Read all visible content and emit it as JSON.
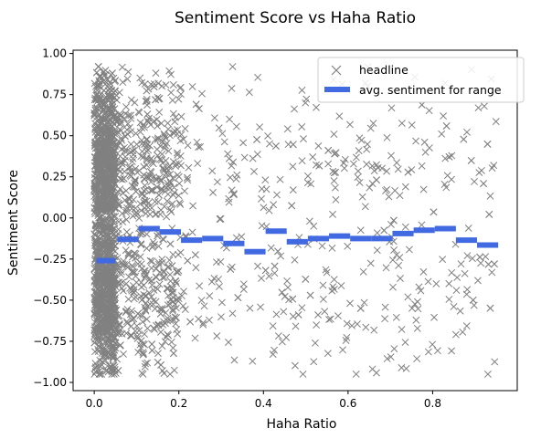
{
  "chart_data": {
    "type": "scatter",
    "title": "Sentiment Score vs Haha Ratio",
    "xlabel": "Haha Ratio",
    "ylabel": "Sentiment Score",
    "xlim": [
      -0.05,
      1.0
    ],
    "ylim": [
      -1.05,
      1.02
    ],
    "xticks": [
      0.0,
      0.2,
      0.4,
      0.6,
      0.8
    ],
    "xtick_labels": [
      "0.0",
      "0.2",
      "0.4",
      "0.6",
      "0.8"
    ],
    "yticks": [
      -1.0,
      -0.75,
      -0.5,
      -0.25,
      0.0,
      0.25,
      0.5,
      0.75,
      1.0
    ],
    "ytick_labels": [
      "−1.00",
      "−0.75",
      "−0.50",
      "−0.25",
      "0.00",
      "0.25",
      "0.50",
      "0.75",
      "1.00"
    ],
    "grid": false,
    "legend_position": "top-right",
    "series": [
      {
        "name": "headline",
        "marker": "x",
        "color": "#808080",
        "y_range": [
          -0.95,
          0.92
        ],
        "x_range": [
          0.0,
          0.95
        ],
        "note_points": "dense cloud, heavily concentrated at x < 0.05"
      },
      {
        "name": "avg. sentiment for range",
        "style": "horizontal-segments",
        "color": "#4169e1",
        "segments": [
          {
            "x0": 0.005,
            "x1": 0.05,
            "y": -0.26
          },
          {
            "x0": 0.055,
            "x1": 0.105,
            "y": -0.13
          },
          {
            "x0": 0.105,
            "x1": 0.155,
            "y": -0.065
          },
          {
            "x0": 0.155,
            "x1": 0.205,
            "y": -0.085
          },
          {
            "x0": 0.205,
            "x1": 0.255,
            "y": -0.135
          },
          {
            "x0": 0.255,
            "x1": 0.305,
            "y": -0.125
          },
          {
            "x0": 0.305,
            "x1": 0.355,
            "y": -0.155
          },
          {
            "x0": 0.355,
            "x1": 0.405,
            "y": -0.205
          },
          {
            "x0": 0.405,
            "x1": 0.455,
            "y": -0.08
          },
          {
            "x0": 0.455,
            "x1": 0.505,
            "y": -0.145
          },
          {
            "x0": 0.505,
            "x1": 0.555,
            "y": -0.125
          },
          {
            "x0": 0.555,
            "x1": 0.605,
            "y": -0.11
          },
          {
            "x0": 0.605,
            "x1": 0.655,
            "y": -0.125
          },
          {
            "x0": 0.655,
            "x1": 0.705,
            "y": -0.125
          },
          {
            "x0": 0.705,
            "x1": 0.755,
            "y": -0.095
          },
          {
            "x0": 0.755,
            "x1": 0.805,
            "y": -0.075
          },
          {
            "x0": 0.805,
            "x1": 0.855,
            "y": -0.065
          },
          {
            "x0": 0.855,
            "x1": 0.905,
            "y": -0.135
          },
          {
            "x0": 0.905,
            "x1": 0.955,
            "y": -0.165
          }
        ]
      }
    ]
  }
}
